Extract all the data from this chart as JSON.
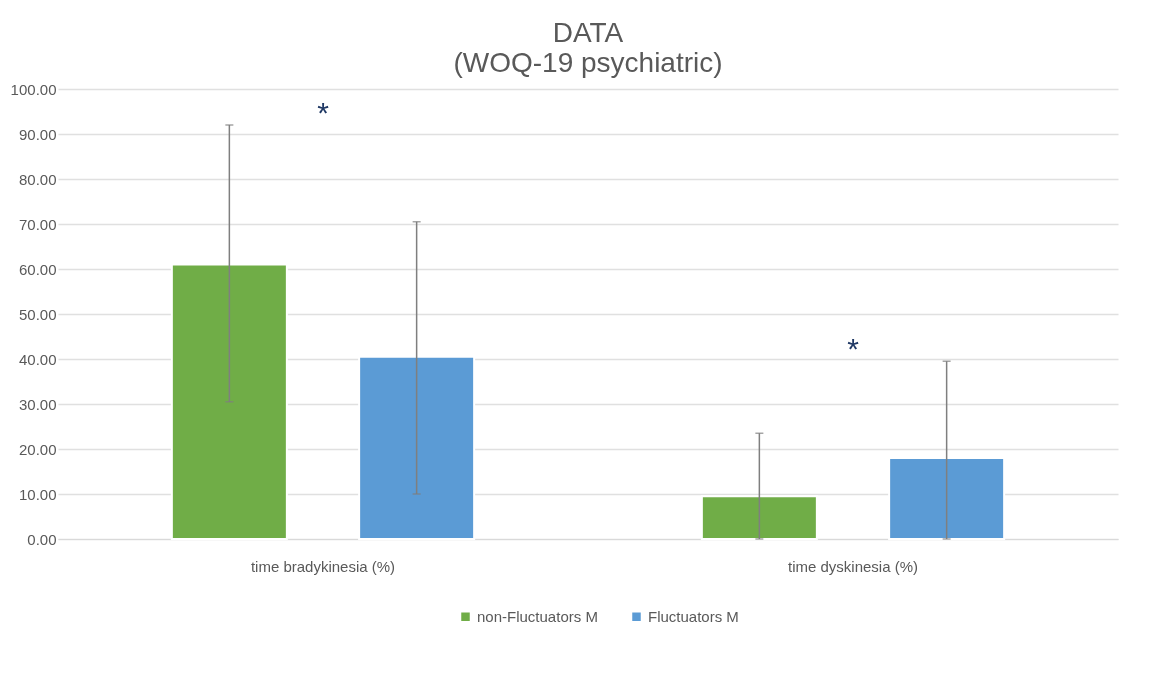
{
  "chart_data": {
    "type": "bar",
    "title": [
      "DATA",
      "(WOQ-19 psychiatric)"
    ],
    "categories": [
      "time bradykinesia (%)",
      "time dyskinesia (%)"
    ],
    "series": [
      {
        "name": "non-Fluctuators M",
        "color": "#70ad47",
        "values": [
          61.0,
          9.5
        ],
        "errors": [
          [
            30.5,
            92.0
          ],
          [
            0,
            23.5
          ]
        ]
      },
      {
        "name": "Fluctuators M",
        "color": "#5b9bd5",
        "values": [
          40.5,
          18.0
        ],
        "errors": [
          [
            10.0,
            70.5
          ],
          [
            0,
            39.5
          ]
        ]
      }
    ],
    "ylim": [
      0,
      100
    ],
    "yticks": [
      {
        "value": 0,
        "label": "0.00"
      },
      {
        "value": 10,
        "label": "10.00"
      },
      {
        "value": 20,
        "label": "20.00"
      },
      {
        "value": 30,
        "label": "30.00"
      },
      {
        "value": 40,
        "label": "40.00"
      },
      {
        "value": 50,
        "label": "50.00"
      },
      {
        "value": 60,
        "label": "60.00"
      },
      {
        "value": 70,
        "label": "70.00"
      },
      {
        "value": 80,
        "label": "80.00"
      },
      {
        "value": 90,
        "label": "90.00"
      },
      {
        "value": 100,
        "label": "100.00"
      }
    ],
    "annotations": [
      "*",
      "*"
    ],
    "grid": "y",
    "legend": "bottom"
  }
}
